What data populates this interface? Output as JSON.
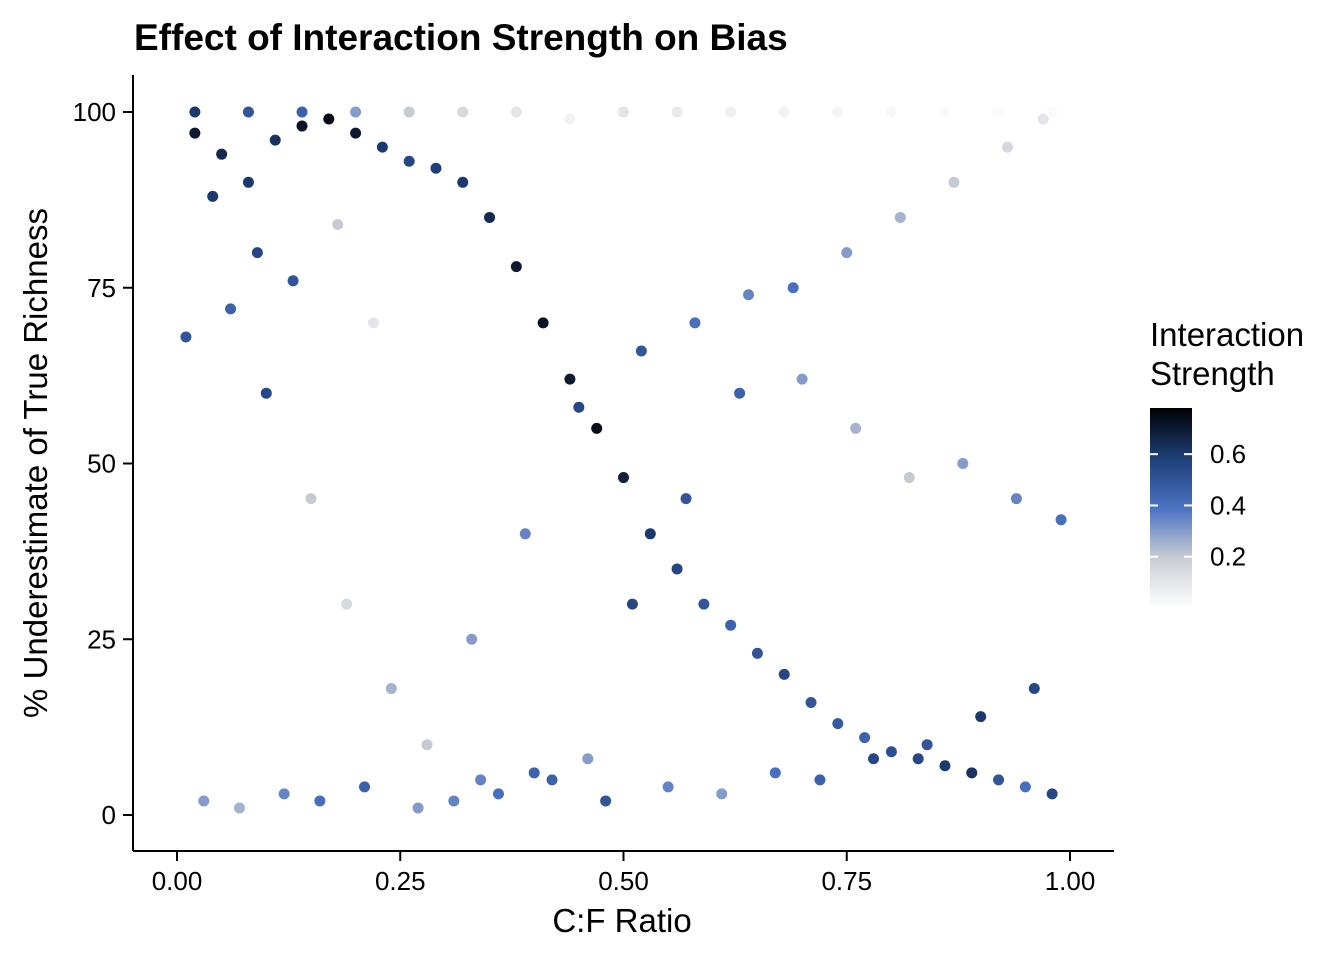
{
  "chart_data": {
    "type": "scatter",
    "title": "Effect of Interaction Strength on Bias",
    "xlabel": "C:F Ratio",
    "ylabel": "% Underestimate of True Richness",
    "xlim": [
      0,
      1
    ],
    "ylim": [
      0,
      100
    ],
    "x_ticks": [
      0,
      0.25,
      0.5,
      0.75,
      1
    ],
    "x_tick_labels": [
      "0.00",
      "0.25",
      "0.50",
      "0.75",
      "1.00"
    ],
    "y_ticks": [
      0,
      25,
      50,
      75,
      100
    ],
    "y_tick_labels": [
      "0",
      "25",
      "50",
      "75",
      "100"
    ],
    "grid": false,
    "legend": {
      "title_lines": [
        "Interaction",
        "Strength"
      ],
      "placement": "right",
      "color_range": [
        0.0,
        0.78
      ],
      "ticks": [
        0.2,
        0.4,
        0.6
      ],
      "tick_labels": [
        "0.2",
        "0.4",
        "0.6"
      ],
      "colors": [
        "#ffffff",
        "#c9ccd3",
        "#4a72c2",
        "#1d3e78",
        "#000000"
      ]
    },
    "point_color": "continuous: Interaction Strength",
    "series": [
      {
        "x": [
          0.02,
          0.05,
          0.08,
          0.11,
          0.14,
          0.17,
          0.2,
          0.23,
          0.26,
          0.29,
          0.32,
          0.35,
          0.38,
          0.41,
          0.44,
          0.47,
          0.5,
          0.53,
          0.56,
          0.59,
          0.62,
          0.65,
          0.68,
          0.71,
          0.74,
          0.77,
          0.8,
          0.83,
          0.86,
          0.89,
          0.92,
          0.95,
          0.98,
          0.03,
          0.07,
          0.12,
          0.16,
          0.21,
          0.27,
          0.31,
          0.36,
          0.42,
          0.48,
          0.55,
          0.61,
          0.67,
          0.72,
          0.78,
          0.84,
          0.9,
          0.96,
          0.01,
          0.06,
          0.1,
          0.15,
          0.19,
          0.24,
          0.33,
          0.39,
          0.45,
          0.52,
          0.58,
          0.64,
          0.7,
          0.76,
          0.82,
          0.88,
          0.94,
          0.99,
          0.04,
          0.09,
          0.13,
          0.18,
          0.22,
          0.28,
          0.34,
          0.4,
          0.46,
          0.51,
          0.57,
          0.63,
          0.69,
          0.75,
          0.81,
          0.87,
          0.93,
          0.97,
          0.02,
          0.08,
          0.14,
          0.2,
          0.26,
          0.32,
          0.38,
          0.44,
          0.5,
          0.56,
          0.62,
          0.68,
          0.74,
          0.8,
          0.86,
          0.92,
          0.98
        ],
        "y": [
          97,
          94,
          90,
          96,
          98,
          99,
          97,
          95,
          93,
          92,
          90,
          85,
          78,
          70,
          62,
          55,
          48,
          40,
          35,
          30,
          27,
          23,
          20,
          16,
          13,
          11,
          9,
          8,
          7,
          6,
          5,
          4,
          3,
          2,
          1,
          3,
          2,
          4,
          1,
          2,
          3,
          5,
          2,
          4,
          3,
          6,
          5,
          8,
          10,
          14,
          18,
          68,
          72,
          60,
          45,
          30,
          18,
          25,
          40,
          58,
          66,
          70,
          74,
          62,
          55,
          48,
          50,
          45,
          42,
          88,
          80,
          76,
          84,
          70,
          10,
          5,
          6,
          8,
          30,
          45,
          60,
          75,
          80,
          85,
          90,
          95,
          99,
          100,
          100,
          100,
          100,
          100,
          100,
          100,
          99,
          100,
          100,
          100,
          100,
          100,
          100,
          100,
          100,
          100
        ],
        "color_values": [
          0.7,
          0.65,
          0.6,
          0.62,
          0.72,
          0.75,
          0.7,
          0.6,
          0.55,
          0.58,
          0.6,
          0.65,
          0.7,
          0.72,
          0.7,
          0.74,
          0.68,
          0.6,
          0.55,
          0.5,
          0.45,
          0.5,
          0.55,
          0.5,
          0.48,
          0.45,
          0.52,
          0.55,
          0.6,
          0.62,
          0.5,
          0.4,
          0.55,
          0.3,
          0.25,
          0.35,
          0.4,
          0.45,
          0.3,
          0.35,
          0.4,
          0.45,
          0.5,
          0.35,
          0.3,
          0.4,
          0.45,
          0.55,
          0.5,
          0.6,
          0.55,
          0.5,
          0.45,
          0.55,
          0.2,
          0.15,
          0.25,
          0.3,
          0.35,
          0.55,
          0.5,
          0.4,
          0.35,
          0.3,
          0.25,
          0.2,
          0.3,
          0.35,
          0.4,
          0.6,
          0.55,
          0.5,
          0.2,
          0.1,
          0.2,
          0.35,
          0.45,
          0.3,
          0.55,
          0.5,
          0.45,
          0.4,
          0.3,
          0.25,
          0.2,
          0.15,
          0.1,
          0.6,
          0.5,
          0.45,
          0.3,
          0.2,
          0.15,
          0.1,
          0.05,
          0.1,
          0.08,
          0.06,
          0.05,
          0.04,
          0.03,
          0.02,
          0.02,
          0.02
        ]
      }
    ]
  }
}
